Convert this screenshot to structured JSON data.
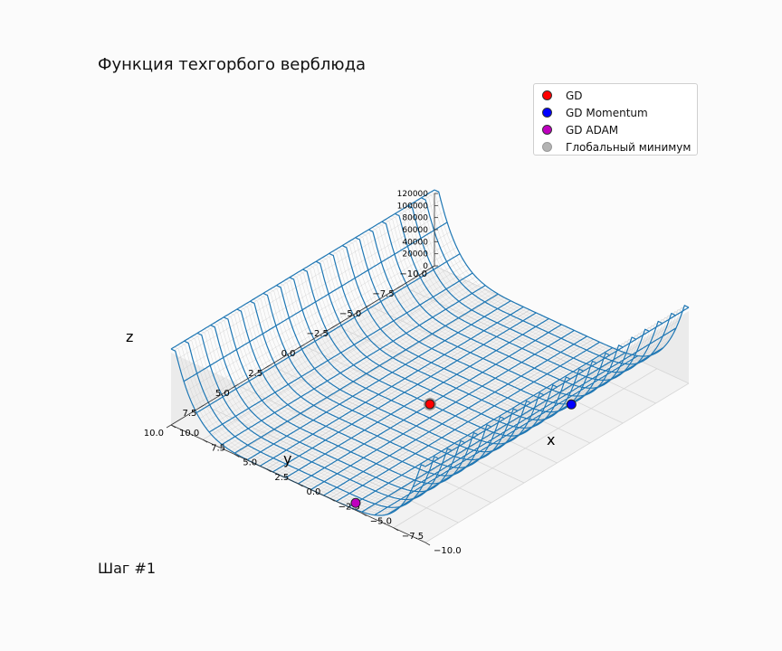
{
  "chart_data": {
    "type": "surface3d",
    "title": "Функция техгорбого верблюда",
    "step_label": "Шаг #1",
    "xlabel": "x",
    "ylabel": "y",
    "zlabel": "z",
    "xlim": [
      -10,
      10
    ],
    "ylim": [
      -10,
      10
    ],
    "zlim": [
      0,
      120000
    ],
    "x_ticks": [
      "−10.0",
      "−7.5",
      "−5.0",
      "−2.5",
      "0.0",
      "2.5",
      "5.0",
      "7.5",
      "10.0"
    ],
    "y_ticks": [
      "−10.0",
      "−7.5",
      "−5.0",
      "−2.5",
      "0.0",
      "2.5",
      "5.0",
      "7.5",
      "10.0"
    ],
    "z_ticks": [
      "0",
      "20000",
      "40000",
      "60000",
      "80000",
      "100000",
      "120000"
    ],
    "surface_color": "#1f77b4",
    "legend": [
      {
        "label": "GD",
        "color": "#ff0000"
      },
      {
        "label": "GD Momentum",
        "color": "#0000ff"
      },
      {
        "label": "GD ADAM",
        "color": "#bf00bf"
      },
      {
        "label": "Глобальный минимум",
        "color": "#b3b3b3"
      }
    ],
    "points": [
      {
        "name": "GD",
        "x": 0.0,
        "y": 0.0,
        "color": "#ff0000"
      },
      {
        "name": "GD Momentum",
        "x": -7.5,
        "y": -3.5,
        "color": "#0000ff"
      },
      {
        "name": "GD ADAM",
        "x": -4.0,
        "y": 9.5,
        "color": "#bf00bf"
      },
      {
        "name": "Глобальный минимум",
        "x": 0.0,
        "y": 0.0,
        "color": "#b3b3b3"
      }
    ]
  }
}
